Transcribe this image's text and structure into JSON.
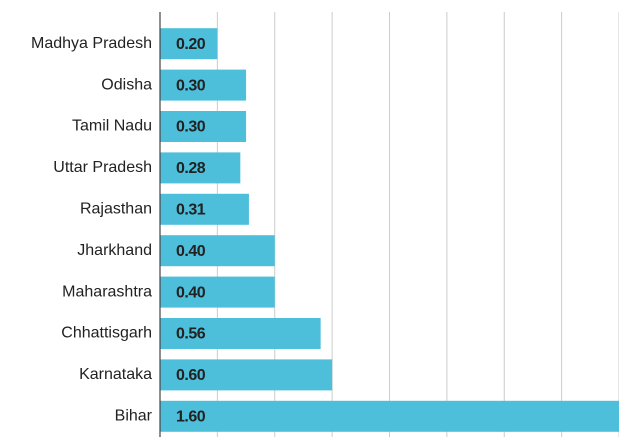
{
  "chart_data": {
    "type": "bar",
    "orientation": "horizontal",
    "categories": [
      "Madhya Pradesh",
      "Odisha",
      "Tamil Nadu",
      "Uttar Pradesh",
      "Rajasthan",
      "Jharkhand",
      "Maharashtra",
      "Chhattisgarh",
      "Karnataka",
      "Bihar"
    ],
    "values": [
      0.2,
      0.3,
      0.3,
      0.28,
      0.31,
      0.4,
      0.4,
      0.56,
      0.6,
      1.6
    ],
    "value_labels": [
      "0.20",
      "0.30",
      "0.30",
      "0.28",
      "0.31",
      "0.40",
      "0.40",
      "0.56",
      "0.60",
      "1.60"
    ],
    "color": "#4dbfda",
    "xlim": [
      0,
      1.6
    ],
    "xticks": [
      0,
      0.2,
      0.4,
      0.6,
      0.8,
      1,
      1.2,
      1.4,
      1.6
    ],
    "grid": true
  }
}
